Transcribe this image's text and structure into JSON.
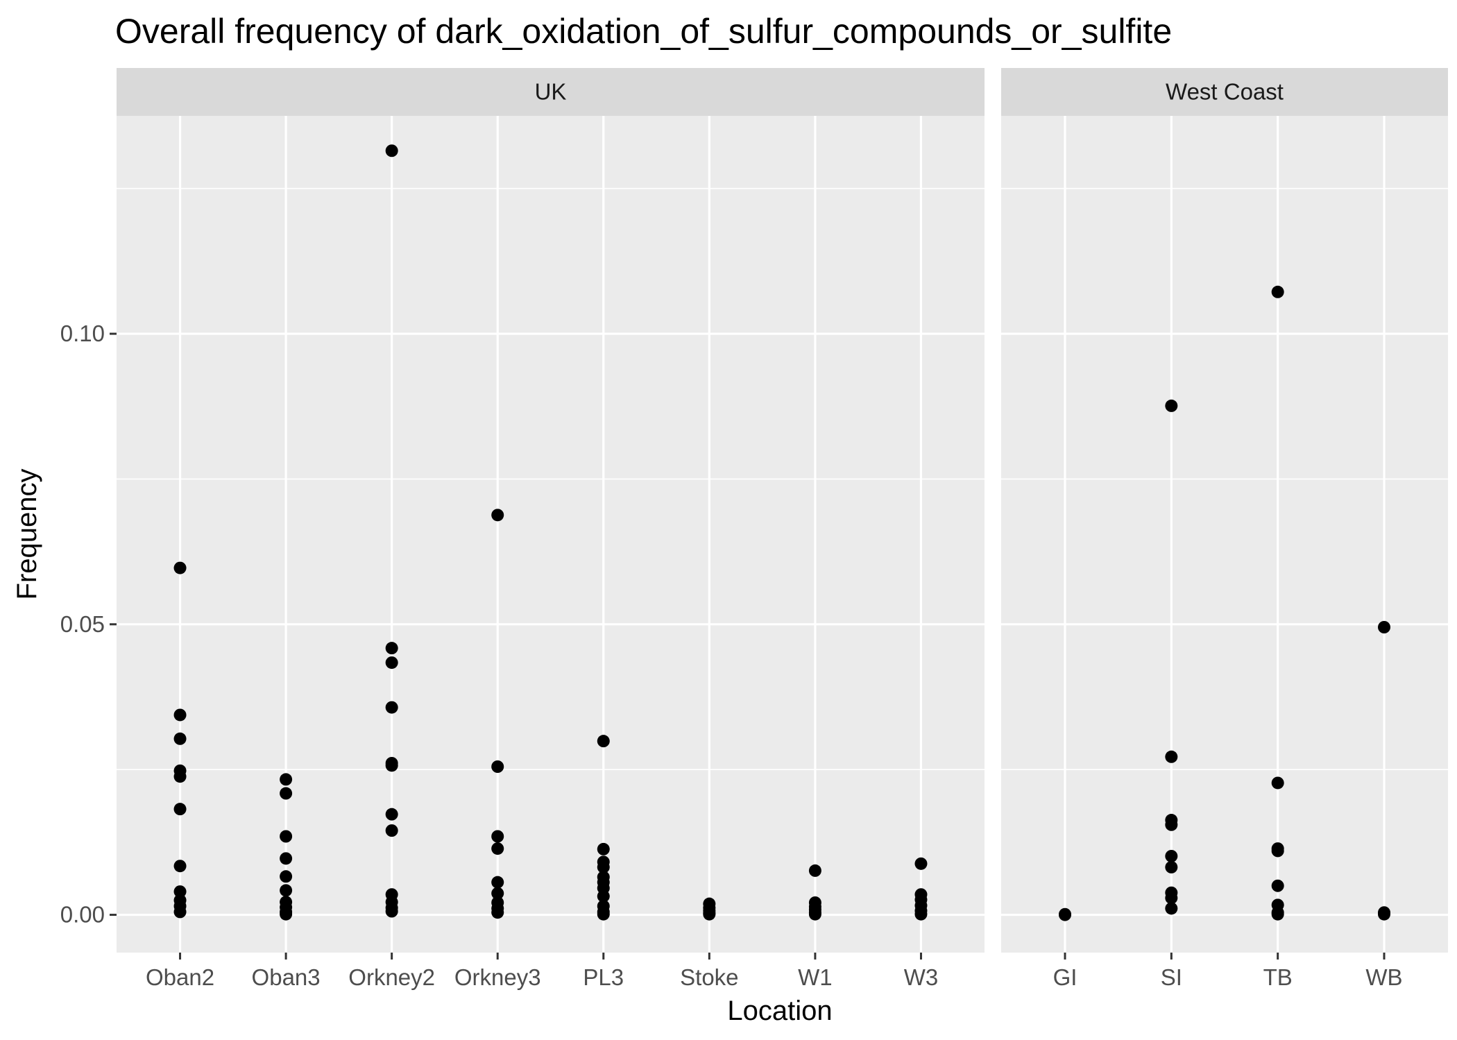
{
  "chart_data": {
    "type": "scatter",
    "title": "Overall frequency of dark_oxidation_of_sulfur_compounds_or_sulfite",
    "xlabel": "Location",
    "ylabel": "Frequency",
    "ylim": [
      -0.0065,
      0.1375
    ],
    "yticks": [
      0.0,
      0.05,
      0.1
    ],
    "ytick_labels": [
      "0.00",
      "0.05",
      "0.10"
    ],
    "grid": true,
    "facets": [
      {
        "name": "UK",
        "categories": [
          "Oban2",
          "Oban3",
          "Orkney2",
          "Orkney3",
          "PL3",
          "Stoke",
          "W1",
          "W3"
        ],
        "points": {
          "Oban2": [
            0.0597,
            0.0344,
            0.0303,
            0.0248,
            0.0238,
            0.0182,
            0.0084,
            0.004,
            0.0025,
            0.0015,
            0.0005
          ],
          "Oban3": [
            0.0233,
            0.0209,
            0.0135,
            0.0097,
            0.0066,
            0.0042,
            0.0022,
            0.0013,
            0.0005,
            0.0001
          ],
          "Orkney2": [
            0.1315,
            0.0459,
            0.0434,
            0.0357,
            0.0261,
            0.0257,
            0.0173,
            0.0145,
            0.0035,
            0.0022,
            0.0012,
            0.0006
          ],
          "Orkney3": [
            0.0688,
            0.0255,
            0.0135,
            0.0114,
            0.0056,
            0.0037,
            0.0021,
            0.0011,
            0.0004
          ],
          "PL3": [
            0.0299,
            0.0113,
            0.0091,
            0.0082,
            0.0065,
            0.0056,
            0.0046,
            0.0032,
            0.0015,
            0.0005,
            0.0001
          ],
          "Stoke": [
            0.0019,
            0.0012,
            0.0007,
            0.0003,
            0.0001
          ],
          "W1": [
            0.0076,
            0.0021,
            0.0014,
            0.0009,
            0.0004,
            0.0001
          ],
          "W3": [
            0.0088,
            0.0035,
            0.0026,
            0.0016,
            0.0007,
            0.0001
          ]
        }
      },
      {
        "name": "West Coast",
        "categories": [
          "GI",
          "SI",
          "TB",
          "WB"
        ],
        "points": {
          "GI": [
            0.0001,
            0.0
          ],
          "SI": [
            0.0876,
            0.0272,
            0.0163,
            0.0155,
            0.0101,
            0.0082,
            0.0038,
            0.0029,
            0.0011
          ],
          "TB": [
            0.1072,
            0.0227,
            0.0114,
            0.011,
            0.005,
            0.0017,
            0.0004,
            0.0001
          ],
          "WB": [
            0.0495,
            0.0004,
            0.0001
          ]
        }
      }
    ]
  }
}
